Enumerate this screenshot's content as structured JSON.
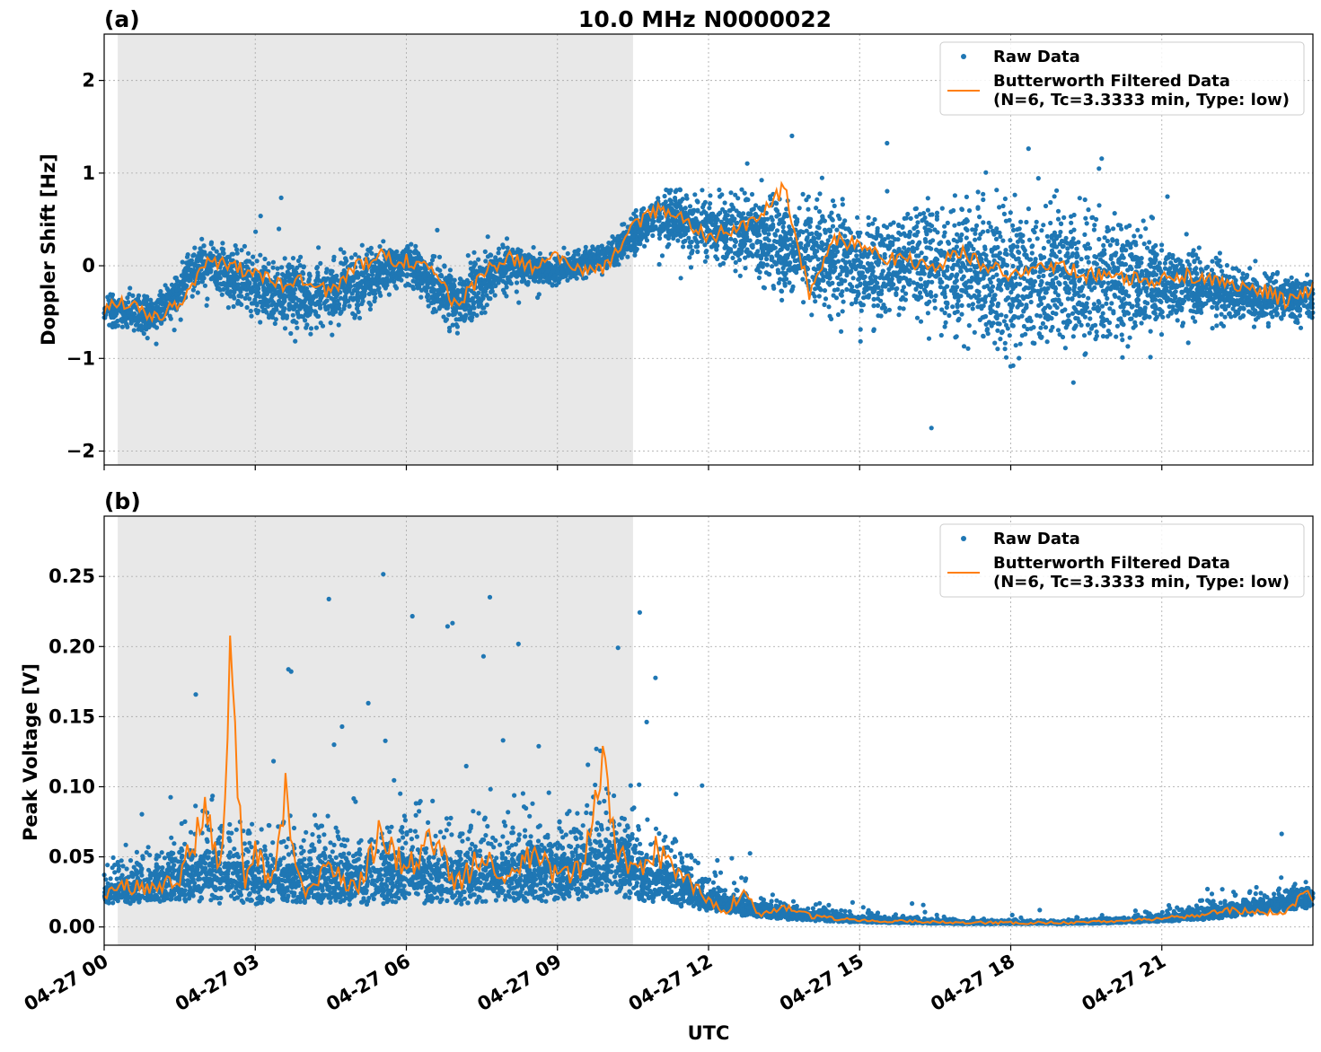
{
  "figure": {
    "title": "10.0 MHz N0000022",
    "xlabel": "UTC"
  },
  "colors": {
    "raw": "#1f77b4",
    "filtered": "#ff7f0e",
    "shade": "#e8e8e8"
  },
  "chart_data": [
    {
      "type": "scatter",
      "panel_label": "(a)",
      "title": "10.0 MHz N0000022",
      "xlabel": "",
      "ylabel": "Doppler Shift [Hz]",
      "xlim_hours": [
        0,
        24
      ],
      "ylim": [
        -2.15,
        2.5
      ],
      "yticks": [
        2,
        1,
        0,
        -1,
        -2
      ],
      "ytick_labels": [
        "2",
        "1",
        "0",
        "−1",
        "−2"
      ],
      "grid": true,
      "legend_position": "top-right",
      "shaded_interval_hours": [
        0.27,
        10.5
      ],
      "series": [
        {
          "name": "Raw Data",
          "style": "points",
          "x_hours": [
            0,
            1,
            2,
            3,
            4,
            5,
            6,
            7,
            8,
            9,
            10,
            11,
            12,
            13,
            14,
            15,
            16,
            17,
            18,
            19,
            20,
            21,
            22,
            23,
            24
          ],
          "y_center": [
            -0.45,
            -0.55,
            0.05,
            -0.25,
            -0.35,
            -0.2,
            0.05,
            -0.4,
            0.0,
            -0.05,
            0.1,
            0.55,
            0.4,
            0.3,
            0.15,
            0.0,
            0.05,
            0.0,
            -0.15,
            -0.1,
            -0.15,
            -0.2,
            -0.25,
            -0.35,
            -0.35
          ],
          "y_spread": [
            0.2,
            0.3,
            0.35,
            0.5,
            0.55,
            0.45,
            0.3,
            0.5,
            0.35,
            0.2,
            0.2,
            0.35,
            0.5,
            0.6,
            0.7,
            0.75,
            0.8,
            0.95,
            1.1,
            1.1,
            0.9,
            0.6,
            0.4,
            0.35,
            0.3
          ]
        },
        {
          "name": "Butterworth Filtered Data\n(N=6, Tc=3.3333 min, Type: low)",
          "style": "line",
          "x_hours": [
            0,
            0.5,
            1,
            1.5,
            2,
            2.5,
            3,
            3.5,
            4,
            4.5,
            5,
            5.5,
            6,
            6.5,
            7,
            7.5,
            8,
            8.5,
            9,
            9.5,
            10,
            10.5,
            11,
            11.5,
            12,
            12.5,
            13,
            13.5,
            14,
            14.5,
            15,
            15.5,
            16,
            16.5,
            17,
            17.5,
            18,
            18.5,
            19,
            19.5,
            20,
            20.5,
            21,
            21.5,
            22,
            22.5,
            23,
            23.5,
            24
          ],
          "y": [
            -0.45,
            -0.4,
            -0.55,
            -0.4,
            0.05,
            0.0,
            -0.1,
            -0.2,
            -0.15,
            -0.3,
            0.0,
            0.1,
            0.05,
            0.0,
            -0.45,
            -0.1,
            0.1,
            0.0,
            0.1,
            -0.05,
            0.0,
            0.45,
            0.6,
            0.5,
            0.3,
            0.4,
            0.5,
            0.85,
            -0.3,
            0.3,
            0.2,
            0.1,
            0.05,
            0.0,
            0.15,
            0.0,
            -0.1,
            -0.05,
            0.0,
            -0.1,
            -0.1,
            -0.15,
            -0.15,
            -0.1,
            -0.15,
            -0.2,
            -0.25,
            -0.4,
            -0.25
          ]
        }
      ]
    },
    {
      "type": "scatter",
      "panel_label": "(b)",
      "title": "",
      "xlabel": "UTC",
      "ylabel": "Peak Voltage [V]",
      "xlim_hours": [
        0,
        24
      ],
      "ylim": [
        -0.013,
        0.293
      ],
      "yticks": [
        0.25,
        0.2,
        0.15,
        0.1,
        0.05,
        0.0
      ],
      "ytick_labels": [
        "0.25",
        "0.20",
        "0.15",
        "0.10",
        "0.05",
        "0.00"
      ],
      "grid": true,
      "legend_position": "top-right",
      "shaded_interval_hours": [
        0.27,
        10.5
      ],
      "series": [
        {
          "name": "Raw Data",
          "style": "points",
          "x_hours": [
            0,
            1,
            2,
            3,
            4,
            5,
            6,
            7,
            8,
            9,
            10,
            11,
            12,
            13,
            14,
            15,
            16,
            17,
            18,
            19,
            20,
            21,
            22,
            23,
            24
          ],
          "y_center": [
            0.025,
            0.03,
            0.04,
            0.035,
            0.035,
            0.035,
            0.04,
            0.035,
            0.04,
            0.04,
            0.05,
            0.035,
            0.02,
            0.012,
            0.008,
            0.005,
            0.004,
            0.003,
            0.003,
            0.003,
            0.004,
            0.006,
            0.01,
            0.015,
            0.02
          ],
          "y_spread": [
            0.02,
            0.03,
            0.05,
            0.045,
            0.04,
            0.045,
            0.05,
            0.045,
            0.05,
            0.05,
            0.06,
            0.04,
            0.02,
            0.012,
            0.008,
            0.004,
            0.003,
            0.002,
            0.002,
            0.002,
            0.003,
            0.005,
            0.01,
            0.012,
            0.015
          ]
        },
        {
          "name": "Butterworth Filtered Data\n(N=6, Tc=3.3333 min, Type: low)",
          "style": "line",
          "x_hours": [
            0,
            0.5,
            1,
            1.5,
            2,
            2.3,
            2.5,
            2.8,
            3,
            3.3,
            3.6,
            4,
            4.5,
            5,
            5.5,
            6,
            6.5,
            7,
            7.5,
            8,
            8.5,
            9,
            9.5,
            9.9,
            10.2,
            10.5,
            11,
            11.5,
            12,
            12.3,
            12.7,
            13,
            13.5,
            14,
            14.5,
            15,
            15.5,
            16,
            17,
            18,
            19,
            20,
            20.5,
            21,
            21.5,
            22,
            22.5,
            23,
            23.5,
            23.8,
            24
          ],
          "y": [
            0.022,
            0.03,
            0.028,
            0.035,
            0.08,
            0.045,
            0.17,
            0.03,
            0.055,
            0.03,
            0.09,
            0.02,
            0.045,
            0.025,
            0.07,
            0.04,
            0.065,
            0.03,
            0.05,
            0.035,
            0.055,
            0.035,
            0.04,
            0.12,
            0.055,
            0.04,
            0.055,
            0.035,
            0.02,
            0.01,
            0.025,
            0.008,
            0.015,
            0.008,
            0.006,
            0.005,
            0.004,
            0.004,
            0.003,
            0.003,
            0.003,
            0.004,
            0.005,
            0.006,
            0.008,
            0.01,
            0.012,
            0.01,
            0.012,
            0.025,
            0.018
          ]
        }
      ]
    }
  ],
  "xaxis": {
    "ticks_hours": [
      0,
      3,
      6,
      9,
      12,
      15,
      18,
      21
    ],
    "tick_labels": [
      "04-27 00",
      "04-27 03",
      "04-27 06",
      "04-27 09",
      "04-27 12",
      "04-27 15",
      "04-27 18",
      "04-27 21"
    ]
  },
  "legend": {
    "raw_label": "Raw Data",
    "filtered_label_line1": "Butterworth Filtered Data",
    "filtered_label_line2": "(N=6, Tc=3.3333 min, Type: low)"
  }
}
